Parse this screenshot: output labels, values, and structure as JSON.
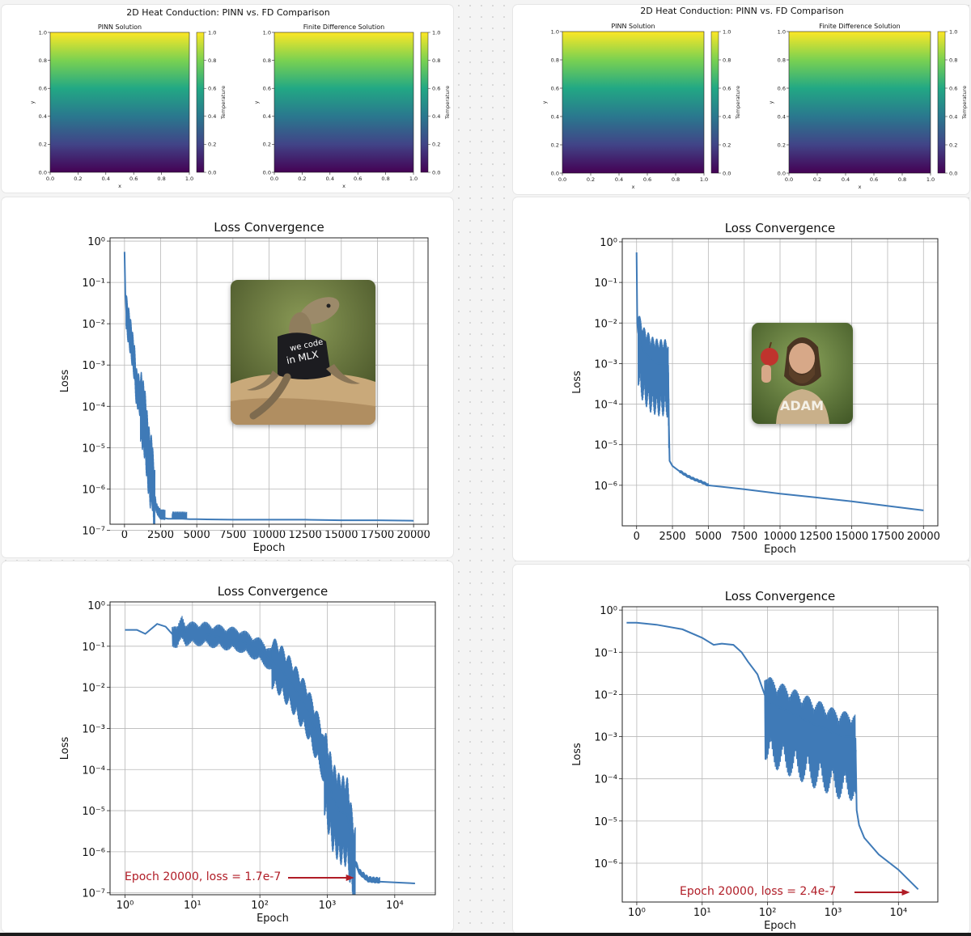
{
  "chart_data": [
    {
      "id": "heat-left",
      "type": "heatmap",
      "title": "2D Heat Conduction: PINN vs. FD Comparison",
      "panels": [
        {
          "title": "PINN Solution",
          "xlabel": "x",
          "ylabel": "y",
          "colorbar_label": "Temperature"
        },
        {
          "title": "Finite Difference Solution",
          "xlabel": "x",
          "ylabel": "y",
          "colorbar_label": "Temperature"
        }
      ],
      "x_ticks": [
        "0.0",
        "0.2",
        "0.4",
        "0.6",
        "0.8",
        "1.0"
      ],
      "y_ticks": [
        "0.0",
        "0.2",
        "0.4",
        "0.6",
        "0.8",
        "1.0"
      ],
      "colorbar_ticks": [
        "0.0",
        "0.2",
        "0.4",
        "0.6",
        "0.8",
        "1.0"
      ],
      "xlim": [
        0,
        1
      ],
      "ylim": [
        0,
        1
      ],
      "clim": [
        0,
        1
      ],
      "field": "temperature = y",
      "colormap": [
        "#440154",
        "#414487",
        "#2a788e",
        "#22a884",
        "#7ad151",
        "#fde725"
      ]
    },
    {
      "id": "heat-right",
      "type": "heatmap",
      "title": "2D Heat Conduction: PINN vs. FD Comparison",
      "panels": [
        {
          "title": "PINN Solution",
          "xlabel": "x",
          "ylabel": "y",
          "colorbar_label": "Temperature"
        },
        {
          "title": "Finite Difference Solution",
          "xlabel": "x",
          "ylabel": "y",
          "colorbar_label": "Temperature"
        }
      ],
      "x_ticks": [
        "0.0",
        "0.2",
        "0.4",
        "0.6",
        "0.8",
        "1.0"
      ],
      "y_ticks": [
        "0.0",
        "0.2",
        "0.4",
        "0.6",
        "0.8",
        "1.0"
      ],
      "colorbar_ticks": [
        "0.0",
        "0.2",
        "0.4",
        "0.6",
        "0.8",
        "1.0"
      ],
      "xlim": [
        0,
        1
      ],
      "ylim": [
        0,
        1
      ],
      "clim": [
        0,
        1
      ],
      "field": "temperature = y",
      "colormap": [
        "#440154",
        "#414487",
        "#2a788e",
        "#22a884",
        "#7ad151",
        "#fde725"
      ]
    },
    {
      "id": "loss-linear-left",
      "type": "line",
      "title": "Loss Convergence",
      "xlabel": "Epoch",
      "ylabel": "Loss",
      "xscale": "linear",
      "yscale": "log",
      "xlim": [
        -1000,
        21000
      ],
      "ylim": [
        1.4e-07,
        1.2
      ],
      "x_ticks": [
        0,
        2500,
        5000,
        7500,
        10000,
        12500,
        15000,
        17500,
        20000
      ],
      "y_ticks": [
        1e-07,
        1e-06,
        1e-05,
        0.0001,
        0.001,
        0.01,
        0.1,
        1
      ],
      "grid": true,
      "line_color": "#3f7ab7",
      "series": [
        {
          "x": [
            0,
            60,
            120,
            200,
            300,
            400,
            500,
            700,
            800,
            1000,
            1200,
            1400,
            1600,
            1800,
            1900,
            2000,
            2100,
            2200,
            2300,
            2500,
            2700,
            3000,
            3500,
            4000,
            4500,
            5000,
            7500,
            10000,
            12500,
            15000,
            17500,
            20000
          ],
          "y": [
            0.55,
            0.05,
            0.02,
            0.012,
            0.008,
            0.005,
            0.003,
            0.001,
            0.0003,
            0.0002,
            0.0001,
            5e-05,
            1e-05,
            3e-06,
            4e-06,
            1e-06,
            5e-07,
            3e-07,
            2.5e-07,
            2e-07,
            2e-07,
            1.9e-07,
            1.9e-07,
            1.9e-07,
            1.85e-07,
            1.85e-07,
            1.8e-07,
            1.8e-07,
            1.8e-07,
            1.75e-07,
            1.75e-07,
            1.7e-07
          ],
          "noise_band": [
            {
              "x": [
                100,
                1100
              ],
              "lo_factor": 0.35,
              "hi_factor": 3
            },
            {
              "x": [
                1100,
                2100
              ],
              "lo_factor": 0.1,
              "hi_factor": 6
            },
            {
              "x": [
                2100,
                2800
              ],
              "lo_factor": 0.9,
              "hi_factor": 1.6
            },
            {
              "x": [
                3300,
                4300
              ],
              "lo_factor": 1,
              "hi_factor": 1.5
            }
          ]
        }
      ]
    },
    {
      "id": "loss-linear-right",
      "type": "line",
      "title": "Loss Convergence",
      "xlabel": "Epoch",
      "ylabel": "Loss",
      "xscale": "linear",
      "yscale": "log",
      "xlim": [
        -1000,
        21000
      ],
      "ylim": [
        1e-07,
        1.2
      ],
      "x_ticks": [
        0,
        2500,
        5000,
        7500,
        10000,
        12500,
        15000,
        17500,
        20000
      ],
      "y_ticks": [
        1e-06,
        1e-05,
        0.0001,
        0.001,
        0.01,
        0.1,
        1
      ],
      "grid": true,
      "line_color": "#3f7ab7",
      "series": [
        {
          "x": [
            0,
            50,
            100,
            200,
            300,
            500,
            800,
            1000,
            1500,
            2000,
            2200,
            2250,
            2300,
            2500,
            3000,
            3500,
            4000,
            4500,
            5000,
            7500,
            10000,
            12500,
            15000,
            17500,
            20000
          ],
          "y": [
            0.55,
            0.01,
            0.006,
            0.004,
            0.003,
            0.002,
            0.0015,
            0.0012,
            0.001,
            0.001,
            0.0009,
            3.5e-05,
            4e-06,
            3e-06,
            2.2e-06,
            1.7e-06,
            1.4e-06,
            1.2e-06,
            1e-06,
            8e-07,
            6.2e-07,
            5e-07,
            4e-07,
            3.1e-07,
            2.4e-07
          ],
          "noise_band": [
            {
              "x": [
                100,
                2250
              ],
              "lo_factor": 0.05,
              "hi_factor": 4
            },
            {
              "x": [
                3000,
                5000
              ],
              "lo_factor": 0.92,
              "hi_factor": 1.12
            }
          ]
        }
      ]
    },
    {
      "id": "loss-log-left",
      "type": "line",
      "title": "Loss Convergence",
      "xlabel": "Epoch",
      "ylabel": "Loss",
      "xscale": "log",
      "yscale": "log",
      "xlim": [
        0.6,
        40000
      ],
      "ylim": [
        9e-08,
        1.2
      ],
      "x_ticks": [
        1,
        10,
        100,
        1000,
        10000
      ],
      "y_ticks": [
        1e-07,
        1e-06,
        1e-05,
        0.0001,
        0.001,
        0.01,
        0.1,
        1
      ],
      "grid": true,
      "line_color": "#3f7ab7",
      "series": [
        {
          "x": [
            1,
            1.5,
            2,
            3,
            4,
            5,
            6,
            7,
            8,
            10,
            15,
            20,
            30,
            50,
            100,
            200,
            300,
            500,
            800,
            1000,
            1200,
            1500,
            2000,
            2500,
            3000,
            4000,
            5000,
            10000,
            20000
          ],
          "y": [
            0.25,
            0.25,
            0.2,
            0.35,
            0.3,
            0.2,
            0.15,
            0.3,
            0.2,
            0.2,
            0.2,
            0.18,
            0.16,
            0.14,
            0.08,
            0.03,
            0.012,
            0.003,
            0.0004,
            7e-05,
            2e-05,
            1e-05,
            8e-06,
            6e-07,
            3e-07,
            2e-07,
            1.9e-07,
            1.8e-07,
            1.7e-07
          ],
          "noise_band": [
            {
              "x": [
                5,
                150
              ],
              "lo_factor": 0.5,
              "hi_factor": 2
            },
            {
              "x": [
                150,
                900
              ],
              "lo_factor": 0.2,
              "hi_factor": 4
            },
            {
              "x": [
                900,
                2600
              ],
              "lo_factor": 0.05,
              "hi_factor": 8
            },
            {
              "x": [
                2600,
                6000
              ],
              "lo_factor": 0.9,
              "hi_factor": 1.3
            }
          ]
        }
      ],
      "annotation": {
        "text": "Epoch 20000, loss = 1.7e-7",
        "color": "#b01c26",
        "arrow_to_x": 2500,
        "arrow_y": 1.7e-07
      }
    },
    {
      "id": "loss-log-right",
      "type": "line",
      "title": "Loss Convergence",
      "xlabel": "Epoch",
      "ylabel": "Loss",
      "xscale": "log",
      "yscale": "log",
      "xlim": [
        0.6,
        40000
      ],
      "ylim": [
        1.2e-07,
        1.2
      ],
      "x_ticks": [
        1,
        10,
        100,
        1000,
        10000
      ],
      "y_ticks": [
        1e-06,
        1e-05,
        0.0001,
        0.001,
        0.01,
        0.1,
        1
      ],
      "grid": true,
      "line_color": "#3f7ab7",
      "series": [
        {
          "x": [
            0.7,
            1,
            2,
            5,
            10,
            15,
            20,
            30,
            40,
            50,
            70,
            90,
            100,
            150,
            200,
            300,
            500,
            800,
            1000,
            1500,
            2000,
            2200,
            2300,
            2500,
            3000,
            5000,
            10000,
            20000
          ],
          "y": [
            0.5,
            0.5,
            0.45,
            0.35,
            0.22,
            0.15,
            0.16,
            0.15,
            0.1,
            0.06,
            0.03,
            0.01,
            0.007,
            0.005,
            0.004,
            0.003,
            0.002,
            0.0015,
            0.0012,
            0.001,
            0.001,
            0.0009,
            1.8e-05,
            8e-06,
            4e-06,
            1.6e-06,
            7e-07,
            2.4e-07
          ],
          "noise_band": [
            {
              "x": [
                90,
                2250
              ],
              "lo_factor": 0.03,
              "hi_factor": 4
            }
          ]
        }
      ],
      "annotation": {
        "text": "Epoch 20000, loss = 2.4e-7",
        "color": "#b01c26",
        "arrow_to_x": 15000,
        "arrow_y": 2.4e-07
      }
    }
  ],
  "memes": {
    "lizard_shirt_text": "we code in MLX",
    "man_shirt_text": "ADAM"
  }
}
